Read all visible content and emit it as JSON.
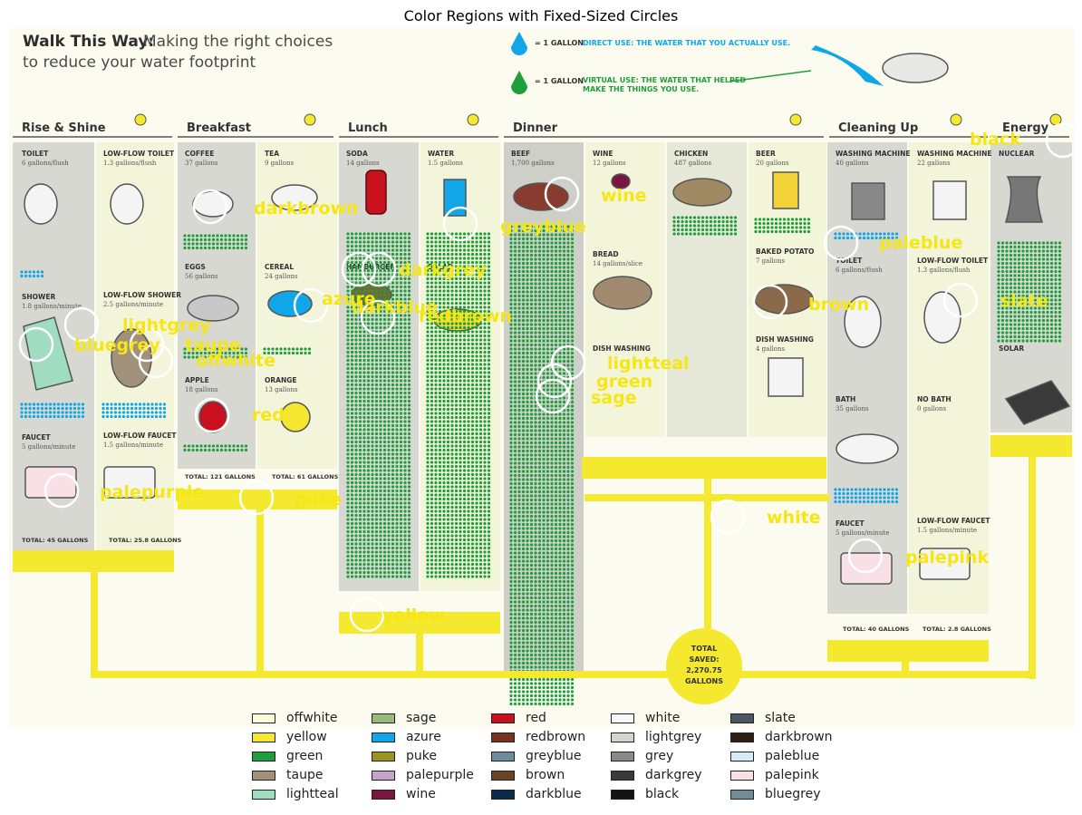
{
  "plot_title": "Color Regions with Fixed-Sized Circles",
  "infographic": {
    "heading_bold": "Walk This Way:",
    "heading_rest": "Making the right choices",
    "heading_line2": "to reduce your water footprint",
    "key_direct": "= 1 GALLON",
    "key_direct_desc": "DIRECT USE: THE WATER THAT YOU ACTUALLY USE.",
    "key_virtual": "= 1 GALLON",
    "key_virtual_desc1": "VIRTUAL USE: THE WATER THAT HELPED",
    "key_virtual_desc2": "MAKE THE THINGS YOU USE.",
    "sections": [
      "Rise & Shine",
      "Breakfast",
      "Lunch",
      "Dinner",
      "Cleaning Up",
      "Energy"
    ],
    "cells": [
      {
        "name": "TOILET",
        "sub": "6 gallons/flush"
      },
      {
        "name": "LOW-FLOW TOILET",
        "sub": "1.3 gallons/flush"
      },
      {
        "name": "SHOWER",
        "sub": "1.8 gallons/minute"
      },
      {
        "name": "LOW-FLOW SHOWER",
        "sub": "2.5 gallons/minute"
      },
      {
        "name": "FAUCET",
        "sub": "5 gallons/minute"
      },
      {
        "name": "LOW-FLOW FAUCET",
        "sub": "1.5 gallons/minute"
      },
      {
        "name": "COFFEE",
        "sub": "37 gallons"
      },
      {
        "name": "TEA",
        "sub": "9 gallons"
      },
      {
        "name": "EGGS",
        "sub": "56 gallons"
      },
      {
        "name": "CEREAL",
        "sub": "24 gallons"
      },
      {
        "name": "APPLE",
        "sub": "18 gallons"
      },
      {
        "name": "ORANGE",
        "sub": "13 gallons"
      },
      {
        "name": "SODA",
        "sub": "14 gallons"
      },
      {
        "name": "WATER",
        "sub": "1.5 gallons"
      },
      {
        "name": "HAMBURGER",
        "sub": ""
      },
      {
        "name": "SALAD",
        "sub": ""
      },
      {
        "name": "BEEF",
        "sub": "1,700 gallons"
      },
      {
        "name": "WINE",
        "sub": "12 gallons"
      },
      {
        "name": "CHICKEN",
        "sub": "487 gallons"
      },
      {
        "name": "BEER",
        "sub": "20 gallons"
      },
      {
        "name": "BREAD",
        "sub": "14 gallons/slice"
      },
      {
        "name": "BAKED POTATO",
        "sub": "7 gallons"
      },
      {
        "name": "DISH WASHING",
        "sub": ""
      },
      {
        "name": "DISH WASHING",
        "sub": "4 gallons"
      },
      {
        "name": "WASHING MACHINE",
        "sub": "40 gallons"
      },
      {
        "name": "WASHING MACHINE",
        "sub": "22 gallons"
      },
      {
        "name": "TOILET",
        "sub": "6 gallons/flush"
      },
      {
        "name": "LOW-FLOW TOILET",
        "sub": "1.3 gallons/flush"
      },
      {
        "name": "BATH",
        "sub": "35 gallons"
      },
      {
        "name": "NO BATH",
        "sub": "0 gallons"
      },
      {
        "name": "FAUCET",
        "sub": "5 gallons/minute"
      },
      {
        "name": "LOW-FLOW FAUCET",
        "sub": "1.5 gallons/minute"
      },
      {
        "name": "NUCLEAR",
        "sub": ""
      },
      {
        "name": "SOLAR",
        "sub": ""
      }
    ],
    "totals": [
      "TOTAL: 45 GALLONS",
      "TOTAL: 25.8 GALLONS",
      "TOTAL: 121 GALLONS",
      "TOTAL: 61 GALLONS",
      "TOTAL: 40 GALLONS",
      "TOTAL: 2.8 GALLONS"
    ],
    "grand_total": [
      "TOTAL",
      "SAVED:",
      "2,270.75",
      "GALLONS"
    ]
  },
  "circle_labels": [
    "black",
    "wine",
    "paleblue",
    "greyblue",
    "darkbrown",
    "darkgrey",
    "azure",
    "darkblue",
    "redbrown",
    "brown",
    "slate",
    "lightgrey",
    "bluegrey",
    "taupe",
    "offwhite",
    "lightteal",
    "green",
    "sage",
    "red",
    "palepurple",
    "puke",
    "white",
    "palepink",
    "yellow"
  ],
  "label_color": "#f5e614",
  "legend": [
    {
      "label": "offwhite",
      "color": "#fbfbd9"
    },
    {
      "label": "yellow",
      "color": "#f5e930"
    },
    {
      "label": "green",
      "color": "#1f9e3c"
    },
    {
      "label": "taupe",
      "color": "#a2917a"
    },
    {
      "label": "lightteal",
      "color": "#9fdcc0"
    },
    {
      "label": "sage",
      "color": "#9ab87a"
    },
    {
      "label": "azure",
      "color": "#10a6e8"
    },
    {
      "label": "puke",
      "color": "#9a9420"
    },
    {
      "label": "palepurple",
      "color": "#c4a4c8"
    },
    {
      "label": "wine",
      "color": "#7a1640"
    },
    {
      "label": "red",
      "color": "#c8101e"
    },
    {
      "label": "redbrown",
      "color": "#7a3220"
    },
    {
      "label": "greyblue",
      "color": "#6e8a9e"
    },
    {
      "label": "brown",
      "color": "#6a4420"
    },
    {
      "label": "darkblue",
      "color": "#0c2a4a"
    },
    {
      "label": "white",
      "color": "#f8f8f8"
    },
    {
      "label": "lightgrey",
      "color": "#d4d4d0"
    },
    {
      "label": "grey",
      "color": "#8a8a86"
    },
    {
      "label": "darkgrey",
      "color": "#3a3a3a"
    },
    {
      "label": "black",
      "color": "#141414"
    },
    {
      "label": "slate",
      "color": "#4a5660"
    },
    {
      "label": "darkbrown",
      "color": "#2e2014"
    },
    {
      "label": "paleblue",
      "color": "#d4ecf4"
    },
    {
      "label": "palepink",
      "color": "#f8e0e6"
    },
    {
      "label": "bluegrey",
      "color": "#708c98"
    }
  ]
}
